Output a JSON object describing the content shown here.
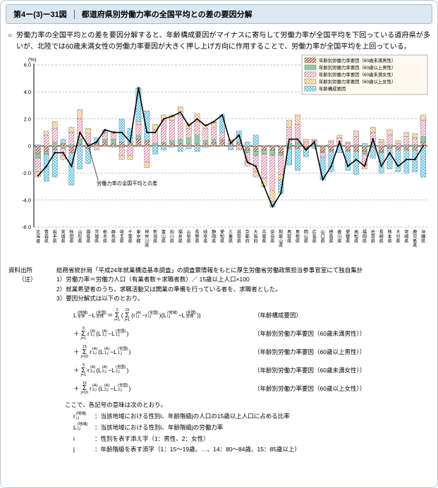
{
  "header": {
    "figure_number": "第4ー(3)ー31図",
    "title": "都道府県別労働力率の全国平均との差の要因分解"
  },
  "summary": {
    "marker": "○",
    "text": "労働力率の全国平均との差を要因分解すると、年齢構成要因がマイナスに寄与して労働力率が全国平均を下回っている道府県が多いが、北陸では60歳未満女性の労働力率要因が大きく押し上げ方向に作用することで、労働力率が全国平均を上回っている。"
  },
  "chart_data": {
    "type": "bar",
    "stacked": true,
    "ylabel": "(%)",
    "ylim": [
      -6.0,
      6.0
    ],
    "yticks": [
      6.0,
      4.0,
      2.0,
      0,
      -2.0,
      -4.0,
      -6.0
    ],
    "grid": true,
    "legend_position": "top-right",
    "annotation": "労働力率の全国平均との差",
    "categories": [
      "北海道",
      "青森県",
      "岩手県",
      "宮城県",
      "秋田県",
      "山形県",
      "福島県",
      "茨城県",
      "栃木県",
      "群馬県",
      "埼玉県",
      "千葉県",
      "東京都",
      "神奈川県",
      "新潟県",
      "富山県",
      "石川県",
      "福井県",
      "山梨県",
      "長野県",
      "岐阜県",
      "静岡県",
      "愛知県",
      "三重県",
      "滋賀県",
      "京都府",
      "大阪府",
      "兵庫県",
      "奈良県",
      "和歌山県",
      "鳥取県",
      "島根県",
      "岡山県",
      "広島県",
      "山口県",
      "徳島県",
      "香川県",
      "愛媛県",
      "高知県",
      "福岡県",
      "佐賀県",
      "長崎県",
      "熊本県",
      "大分県",
      "宮崎県",
      "鹿児島県",
      "沖縄県"
    ],
    "series": [
      {
        "name": "年齢別労働力率要因（60歳未満男性）",
        "color": "#9e4a22",
        "pattern": "dense",
        "values": [
          -0.6,
          -0.4,
          -0.3,
          0.2,
          -0.5,
          0.1,
          -0.2,
          0.2,
          0.3,
          0.2,
          0.3,
          0.2,
          0.5,
          0.4,
          0.0,
          0.2,
          0.2,
          0.2,
          0.2,
          0.2,
          0.2,
          0.3,
          0.4,
          0.1,
          0.3,
          -0.3,
          -0.4,
          -0.3,
          -0.3,
          -0.5,
          -0.2,
          -0.2,
          -0.2,
          0.0,
          -0.4,
          -0.3,
          0.0,
          -0.3,
          -0.4,
          -0.4,
          -0.1,
          -0.4,
          -0.2,
          -0.3,
          -0.3,
          -0.3,
          0.3
        ]
      },
      {
        "name": "年齢別労働力率要因（60歳以上男性）",
        "color": "#2e9e63",
        "pattern": "grid",
        "values": [
          -0.3,
          -0.2,
          0.3,
          -0.2,
          0.1,
          0.4,
          0.2,
          0.1,
          0.2,
          0.3,
          -0.1,
          0.0,
          0.3,
          0.0,
          0.2,
          0.1,
          0.2,
          0.3,
          0.4,
          0.6,
          0.2,
          0.2,
          0.1,
          0.1,
          0.0,
          -0.2,
          -0.3,
          -0.3,
          -0.4,
          -0.2,
          0.2,
          0.3,
          0.0,
          0.1,
          -0.1,
          -0.1,
          0.1,
          -0.1,
          0.1,
          -0.2,
          0.1,
          -0.1,
          0.1,
          0.0,
          0.1,
          0.1,
          0.4
        ]
      },
      {
        "name": "年齢別労働力率要因（60歳未満女性）",
        "color": "#ee6e96",
        "pattern": "diag1",
        "values": [
          -1.0,
          0.8,
          1.0,
          -0.5,
          0.9,
          1.5,
          0.7,
          -0.3,
          0.4,
          0.4,
          -0.6,
          -0.7,
          0.8,
          -1.2,
          1.0,
          1.6,
          1.5,
          1.8,
          0.7,
          1.0,
          0.9,
          0.9,
          0.5,
          0.2,
          -0.2,
          -0.7,
          -1.2,
          -1.8,
          -2.6,
          -1.4,
          1.2,
          1.3,
          0.3,
          0.3,
          -0.3,
          0.3,
          0.5,
          0.2,
          0.6,
          -0.8,
          0.9,
          0.3,
          0.7,
          0.2,
          0.6,
          0.5,
          1.2
        ]
      },
      {
        "name": "年齢別労働力率要因（60歳以上女性）",
        "color": "#f09a2e",
        "pattern": "diag2",
        "values": [
          -0.4,
          0.3,
          0.5,
          -0.3,
          0.4,
          0.7,
          0.4,
          0.0,
          0.1,
          0.2,
          -0.3,
          -0.3,
          0.2,
          -0.4,
          0.4,
          0.4,
          0.4,
          0.6,
          0.4,
          0.6,
          0.3,
          0.3,
          0.0,
          0.1,
          -0.1,
          -0.3,
          -0.4,
          -0.6,
          -0.8,
          -0.4,
          0.5,
          0.7,
          0.2,
          0.1,
          0.0,
          0.1,
          0.2,
          0.1,
          0.4,
          -0.3,
          0.4,
          0.2,
          0.4,
          0.2,
          0.3,
          0.3,
          0.4
        ]
      },
      {
        "name": "年齢構成要因",
        "color": "#45bce4",
        "pattern": "xhatch",
        "values": [
          0.1,
          -2.0,
          -2.0,
          0.3,
          -2.4,
          -1.7,
          -1.1,
          0.3,
          0.2,
          -0.1,
          1.7,
          1.1,
          2.5,
          2.2,
          -0.6,
          -0.3,
          -0.1,
          -0.4,
          -0.2,
          -0.4,
          -0.1,
          0.1,
          1.3,
          -0.3,
          0.8,
          0.3,
          0.8,
          0.0,
          -0.4,
          -1.0,
          -1.2,
          -1.6,
          -0.6,
          -0.2,
          -1.7,
          -1.5,
          -0.5,
          -1.4,
          -1.7,
          0.2,
          -0.8,
          -1.5,
          -1.5,
          -1.6,
          -1.7,
          -1.6,
          -2.3
        ]
      }
    ],
    "line_series": {
      "name": "労働力率の全国平均との差",
      "color": "#000000",
      "values": [
        -2.2,
        -1.5,
        -0.5,
        -0.5,
        -1.5,
        1.0,
        0.0,
        0.3,
        1.2,
        1.0,
        1.0,
        0.3,
        4.3,
        1.0,
        1.0,
        2.0,
        2.2,
        2.5,
        1.5,
        2.0,
        1.5,
        1.8,
        2.3,
        0.2,
        0.8,
        -1.2,
        -1.5,
        -3.0,
        -4.5,
        -3.5,
        0.5,
        0.5,
        -0.3,
        0.3,
        -2.5,
        -1.5,
        0.3,
        -1.5,
        -1.0,
        -1.5,
        0.5,
        -1.5,
        -0.5,
        -1.5,
        -1.0,
        -1.0,
        0.0
      ]
    }
  },
  "notes": {
    "source_label": "資料出所",
    "source_text": "総務省統計局「平成24年就業構造基本調査」の調査票情報をもとに厚生労働省労働政策担当参事官室にて独自集計",
    "note_label": "（注）",
    "items": [
      "1）労働力率＝労働力人口（有業者数＋求職者数）／ 15歳以上人口×100",
      "2）就業希望者のうち、求職活動又は開業の準備を行っている者を、求職者とした。",
      "3）要因分解式は以下のとおり。"
    ],
    "formulas": [
      {
        "expr_html": "L<span class='ss'><span class='t'>(地域)</span><span class='b'>全体</span></span>−L<span class='ss'><span class='t'>(全国)</span><span class='b'>全体</span></span>＝<span class='sig'><span class='t'>2</span><span class='s'>Σ</span><span class='b'>i=1</span></span>(<span class='sig'><span class='t'>15</span><span class='s'>Σ</span><span class='b'>j=1</span></span>(r<span class='ss'><span class='t'>(A)</span><span class='b'>i,j</span></span>−r<span class='ss'><span class='t'>(全国)</span><span class='b'>i,j</span></span>)(L<span class='ss'><span class='t'>(地域)</span><span class='b'>i,j</span></span>−L<span class='ss'><span class='t'>(全国)</span><span class='b'>全体</span></span>))",
        "label": "（年齢構成要因）"
      },
      {
        "expr_html": "＋<span class='sig'><span class='t'>9</span><span class='s'>Σ</span><span class='b'>j=1</span></span>r<span class='ss'><span class='t'>(A)</span><span class='b'>1,j</span></span>(L<span class='ss'><span class='t'>(A)</span><span class='b'>1,j</span></span>−L<span class='ss'><span class='t'>(全国)</span><span class='b'>1,j</span></span>)",
        "label": "（年齢別労働力率要因（60歳未満男性））"
      },
      {
        "expr_html": "＋<span class='sig'><span class='t'>15</span><span class='s'>Σ</span><span class='b'>j=10</span></span>r<span class='ss'><span class='t'>(A)</span><span class='b'>1,j</span></span>(L<span class='ss'><span class='t'>(A)</span><span class='b'>1,j</span></span>−L<span class='ss'><span class='t'>(全国)</span><span class='b'>1,j</span></span>)",
        "label": "（年齢別労働力率要因（60歳以上男性））"
      },
      {
        "expr_html": "＋<span class='sig'><span class='t'>9</span><span class='s'>Σ</span><span class='b'>j=1</span></span>r<span class='ss'><span class='t'>(A)</span><span class='b'>2,j</span></span>(L<span class='ss'><span class='t'>(A)</span><span class='b'>2,j</span></span>−L<span class='ss'><span class='t'>(全国)</span><span class='b'>2,j</span></span>)",
        "label": "（年齢別労働力率要因（60歳未満女性））"
      },
      {
        "expr_html": "＋<span class='sig'><span class='t'>15</span><span class='s'>Σ</span><span class='b'>j=10</span></span>r<span class='ss'><span class='t'>(A)</span><span class='b'>2,j</span></span>(L<span class='ss'><span class='t'>(A)</span><span class='b'>2,j</span></span>−L<span class='ss'><span class='t'>(全国)</span><span class='b'>2,j</span></span>)",
        "label": "（年齢別労働力率要因（60歳以上女性））"
      }
    ],
    "symbols_intro": "ここで、各記号の意味は次のとおり。",
    "symbols": [
      {
        "expr_html": "r<span class='ss'><span class='t'>(地域)</span><span class='b'>i,j</span></span>",
        "desc": "：当該地域における性別i、年齢階級jの人口の15歳以上人口に占める比率"
      },
      {
        "expr_html": "L<span class='ss'><span class='t'>(地域)</span><span class='b'>i,j</span></span>",
        "desc": "：当該地域における性別i、年齢階級jの労働力率"
      },
      {
        "expr_html": "i",
        "desc": "：性別を表す添え字（1：男性、2：女性）"
      },
      {
        "expr_html": "j",
        "desc": "：年齢階級を表す添字（1：15～19歳、…、14：80～84歳、15：85歳以上）"
      }
    ]
  }
}
